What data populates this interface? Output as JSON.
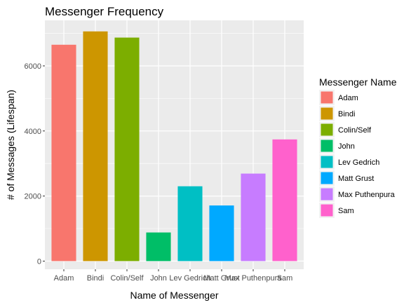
{
  "chart_data": {
    "type": "bar",
    "title": "Messenger Frequency",
    "xlabel": "Name of Messenger",
    "ylabel": "# of Messages (Lifespan)",
    "categories": [
      "Adam",
      "Bindi",
      "Colin/Self",
      "John",
      "Lev Gedrich",
      "Matt Grust",
      "Max Puthenpura",
      "Sam"
    ],
    "values": [
      6650,
      7060,
      6870,
      880,
      2300,
      1710,
      2690,
      3740
    ],
    "colors": [
      "#F8766D",
      "#CD9600",
      "#7CAE00",
      "#00BE67",
      "#00BFC4",
      "#00A9FF",
      "#C77CFF",
      "#FF61CC"
    ],
    "ylim": [
      -250,
      7400
    ],
    "yticks": [
      0,
      2000,
      4000,
      6000
    ],
    "grid": true,
    "legend": {
      "title": "Messenger Name",
      "placement": "right"
    }
  }
}
